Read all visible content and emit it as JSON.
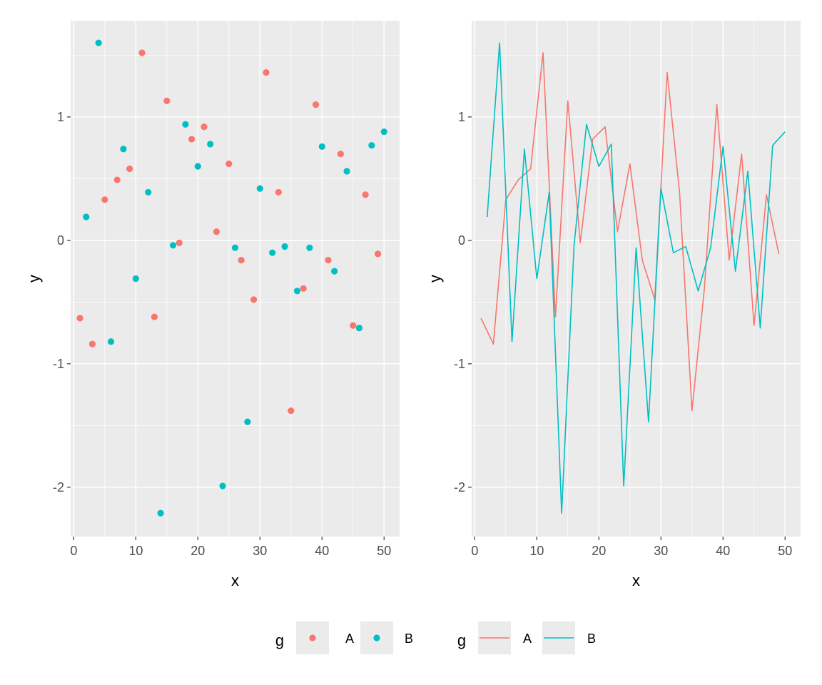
{
  "chart_data": [
    {
      "type": "scatter",
      "xlabel": "x",
      "ylabel": "y",
      "xlim": [
        -0.5,
        52.5
      ],
      "ylim": [
        -2.4,
        1.78
      ],
      "x_ticks": [
        0,
        10,
        20,
        30,
        40,
        50
      ],
      "y_ticks": [
        -2,
        -1,
        0,
        1
      ],
      "grid": true,
      "legend": {
        "title": "g",
        "placement": "bottom",
        "entries": [
          "A",
          "B"
        ]
      },
      "series": [
        {
          "name": "A",
          "color": "#F8766D",
          "x": [
            1,
            3,
            5,
            7,
            9,
            11,
            13,
            15,
            17,
            19,
            21,
            23,
            25,
            27,
            29,
            31,
            33,
            35,
            37,
            39,
            41,
            43,
            45,
            47,
            49
          ],
          "y": [
            -0.63,
            -0.84,
            0.33,
            0.49,
            0.58,
            1.52,
            -0.62,
            1.13,
            -0.02,
            0.82,
            0.92,
            0.07,
            0.62,
            -0.16,
            -0.48,
            1.36,
            0.39,
            -1.38,
            -0.39,
            1.1,
            -0.16,
            0.7,
            -0.69,
            0.37,
            -0.11
          ]
        },
        {
          "name": "B",
          "color": "#00BFC4",
          "x": [
            2,
            4,
            6,
            8,
            10,
            12,
            14,
            16,
            18,
            20,
            22,
            24,
            26,
            28,
            30,
            32,
            34,
            36,
            38,
            40,
            42,
            44,
            46,
            48,
            50
          ],
          "y": [
            0.19,
            1.6,
            -0.82,
            0.74,
            -0.31,
            0.39,
            -2.21,
            -0.04,
            0.94,
            0.6,
            0.78,
            -1.99,
            -0.06,
            -1.47,
            0.42,
            -0.1,
            -0.05,
            -0.41,
            -0.06,
            0.76,
            -0.25,
            0.56,
            -0.71,
            0.77,
            0.88
          ]
        }
      ]
    },
    {
      "type": "line",
      "xlabel": "x",
      "ylabel": "y",
      "xlim": [
        -0.5,
        52.5
      ],
      "ylim": [
        -2.4,
        1.78
      ],
      "x_ticks": [
        0,
        10,
        20,
        30,
        40,
        50
      ],
      "y_ticks": [
        -2,
        -1,
        0,
        1
      ],
      "grid": true,
      "legend": {
        "title": "g",
        "placement": "bottom",
        "entries": [
          "A",
          "B"
        ]
      },
      "series": [
        {
          "name": "A",
          "color": "#F8766D",
          "x": [
            1,
            3,
            5,
            7,
            9,
            11,
            13,
            15,
            17,
            19,
            21,
            23,
            25,
            27,
            29,
            31,
            33,
            35,
            37,
            39,
            41,
            43,
            45,
            47,
            49
          ],
          "y": [
            -0.63,
            -0.84,
            0.33,
            0.49,
            0.58,
            1.52,
            -0.62,
            1.13,
            -0.02,
            0.82,
            0.92,
            0.07,
            0.62,
            -0.16,
            -0.48,
            1.36,
            0.39,
            -1.38,
            -0.39,
            1.1,
            -0.16,
            0.7,
            -0.69,
            0.37,
            -0.11
          ]
        },
        {
          "name": "B",
          "color": "#00BFC4",
          "x": [
            2,
            4,
            6,
            8,
            10,
            12,
            14,
            16,
            18,
            20,
            22,
            24,
            26,
            28,
            30,
            32,
            34,
            36,
            38,
            40,
            42,
            44,
            46,
            48,
            50
          ],
          "y": [
            0.19,
            1.6,
            -0.82,
            0.74,
            -0.31,
            0.39,
            -2.21,
            -0.04,
            0.94,
            0.6,
            0.78,
            -1.99,
            -0.06,
            -1.47,
            0.42,
            -0.1,
            -0.05,
            -0.41,
            -0.06,
            0.76,
            -0.25,
            0.56,
            -0.71,
            0.77,
            0.88
          ]
        }
      ]
    }
  ]
}
